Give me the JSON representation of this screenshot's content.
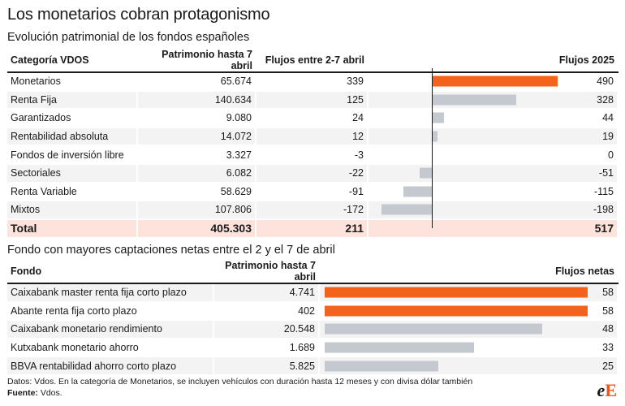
{
  "title": "Los monetarios cobran protagonismo",
  "colors": {
    "accent": "#f5621c",
    "gray": "#c4c8cf",
    "total_bg": "#fde3dc",
    "alt_bg": "#f3f3f3"
  },
  "chart_data": [
    {
      "type": "table",
      "subtitle": "Evolución patrimonial de los fondos españoles",
      "columns": [
        "Categoría VDOS",
        "Patrimonio hasta 7 abril",
        "Flujos entre 2-7 abril",
        "Flujos 2025"
      ],
      "rows": [
        {
          "category": "Monetarios",
          "patrimonio": "65.674",
          "flujos_abril": "339",
          "flujos_2025_label": "490",
          "flujos_2025": 490,
          "highlight": true
        },
        {
          "category": "Renta Fija",
          "patrimonio": "140.634",
          "flujos_abril": "125",
          "flujos_2025_label": "328",
          "flujos_2025": 328
        },
        {
          "category": "Garantizados",
          "patrimonio": "9.080",
          "flujos_abril": "24",
          "flujos_2025_label": "44",
          "flujos_2025": 44
        },
        {
          "category": "Rentabilidad absoluta",
          "patrimonio": "14.072",
          "flujos_abril": "12",
          "flujos_2025_label": "19",
          "flujos_2025": 19
        },
        {
          "category": "Fondos de inversión libre",
          "patrimonio": "3.327",
          "flujos_abril": "-3",
          "flujos_2025_label": "0",
          "flujos_2025": 0
        },
        {
          "category": "Sectoriales",
          "patrimonio": "6.082",
          "flujos_abril": "-22",
          "flujos_2025_label": "-51",
          "flujos_2025": -51
        },
        {
          "category": "Renta Variable",
          "patrimonio": "58.629",
          "flujos_abril": "-91",
          "flujos_2025_label": "-115",
          "flujos_2025": -115
        },
        {
          "category": "Mixtos",
          "patrimonio": "107.806",
          "flujos_abril": "-172",
          "flujos_2025_label": "-198",
          "flujos_2025": -198
        }
      ],
      "total": {
        "category": "Total",
        "patrimonio": "405.303",
        "flujos_abril": "211",
        "flujos_2025_label": "517"
      },
      "bar_range": [
        -250,
        600
      ]
    },
    {
      "type": "table",
      "subtitle": "Fondo con mayores captaciones netas entre el 2 y el 7 de abril",
      "columns": [
        "Fondo",
        "Patrimonio hasta 7 abril",
        "Flujos netas"
      ],
      "rows": [
        {
          "fund": "Caixabank master renta fija corto plazo",
          "patrimonio": "4.741",
          "flujos_label": "58",
          "flujos": 58,
          "highlight": true
        },
        {
          "fund": "Abante renta fija corto plazo",
          "patrimonio": "402",
          "flujos_label": "58",
          "flujos": 58,
          "highlight": true
        },
        {
          "fund": "Caixabank monetario rendimiento",
          "patrimonio": "20.548",
          "flujos_label": "48",
          "flujos": 48
        },
        {
          "fund": "Kutxabank monetario ahorro",
          "patrimonio": "1.689",
          "flujos_label": "33",
          "flujos": 33
        },
        {
          "fund": "BBVA rentabilidad ahorro corto plazo",
          "patrimonio": "5.825",
          "flujos_label": "25",
          "flujos": 25
        }
      ],
      "bar_max": 58
    }
  ],
  "footnote": "Datos: Vdos. En la categoría de Monetarios, se incluyen vehículos con duración hasta 12 meses y con divisa dólar también",
  "source_label": "Fuente:",
  "source_value": "Vdos.",
  "logo": {
    "part1": "e",
    "part2": "E"
  }
}
